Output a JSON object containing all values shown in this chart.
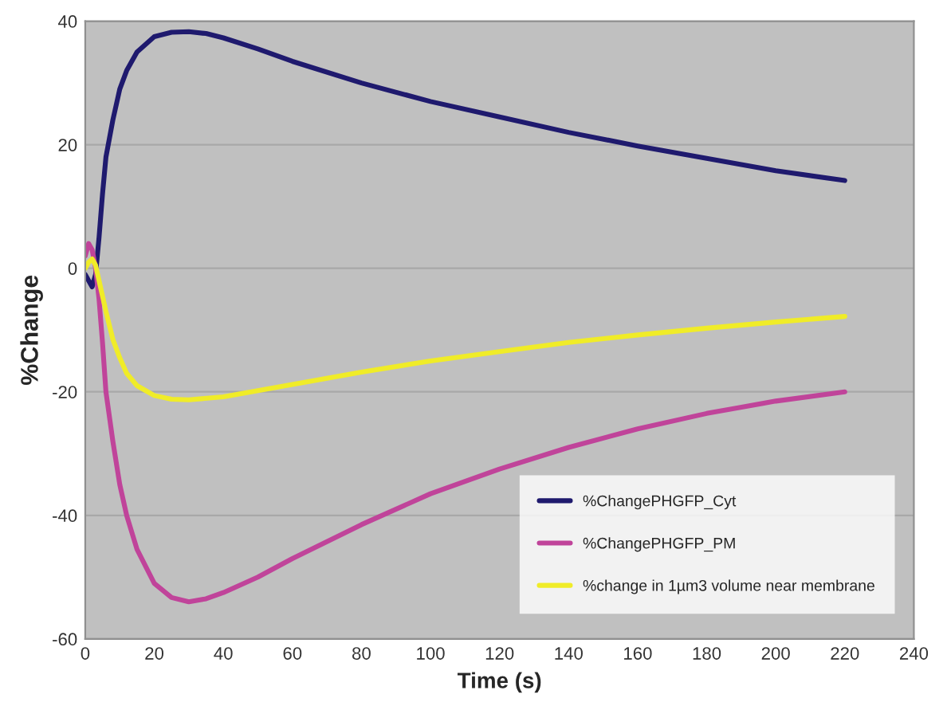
{
  "chart_data": {
    "type": "line",
    "xlabel": "Time (s)",
    "ylabel": "%Change",
    "xlim": [
      0,
      240
    ],
    "xticks": [
      0,
      20,
      40,
      60,
      80,
      100,
      120,
      140,
      160,
      180,
      200,
      220,
      240
    ],
    "ylim": [
      -60,
      40
    ],
    "yticks": [
      -60,
      -40,
      -20,
      0,
      20,
      40
    ],
    "grid": "y",
    "legend": "bottom right",
    "marker": "none",
    "line_style": "solid",
    "series": [
      {
        "name": "%ChangePHGFP_Cyt",
        "color": "#1f1a6e",
        "x": [
          0,
          1,
          2,
          3,
          4,
          5,
          6,
          8,
          10,
          12,
          15,
          20,
          25,
          30,
          35,
          40,
          50,
          60,
          80,
          100,
          120,
          140,
          160,
          180,
          200,
          220
        ],
        "values": [
          -1,
          -2,
          -3,
          -1,
          5,
          12,
          18,
          24,
          29,
          32,
          35,
          37.5,
          38.2,
          38.3,
          38,
          37.3,
          35.5,
          33.5,
          30,
          27,
          24.5,
          22,
          19.8,
          17.8,
          15.8,
          14.2
        ]
      },
      {
        "name": "%ChangePHGFP_PM",
        "color": "#c0449a",
        "x": [
          0,
          1,
          2,
          3,
          4,
          5,
          6,
          8,
          10,
          12,
          15,
          20,
          25,
          30,
          35,
          40,
          50,
          60,
          80,
          100,
          120,
          140,
          160,
          180,
          200,
          220
        ],
        "values": [
          2,
          4,
          3,
          0,
          -5,
          -12,
          -20,
          -28,
          -35,
          -40,
          -45.5,
          -51,
          -53.3,
          -54,
          -53.5,
          -52.5,
          -50,
          -47,
          -41.5,
          -36.5,
          -32.5,
          -29,
          -26,
          -23.5,
          -21.5,
          -20
        ]
      },
      {
        "name": "%change in 1µm3 volume near membrane",
        "color": "#f0ec28",
        "x": [
          0,
          1,
          2,
          3,
          4,
          6,
          8,
          10,
          12,
          15,
          20,
          25,
          30,
          40,
          50,
          60,
          80,
          100,
          120,
          140,
          160,
          180,
          200,
          220
        ],
        "values": [
          0,
          1,
          1.5,
          0.5,
          -2,
          -7,
          -11.5,
          -14.5,
          -17,
          -19,
          -20.6,
          -21.2,
          -21.3,
          -20.8,
          -19.8,
          -18.8,
          -16.8,
          -15,
          -13.5,
          -12,
          -10.8,
          -9.7,
          -8.7,
          -7.8
        ]
      }
    ]
  }
}
